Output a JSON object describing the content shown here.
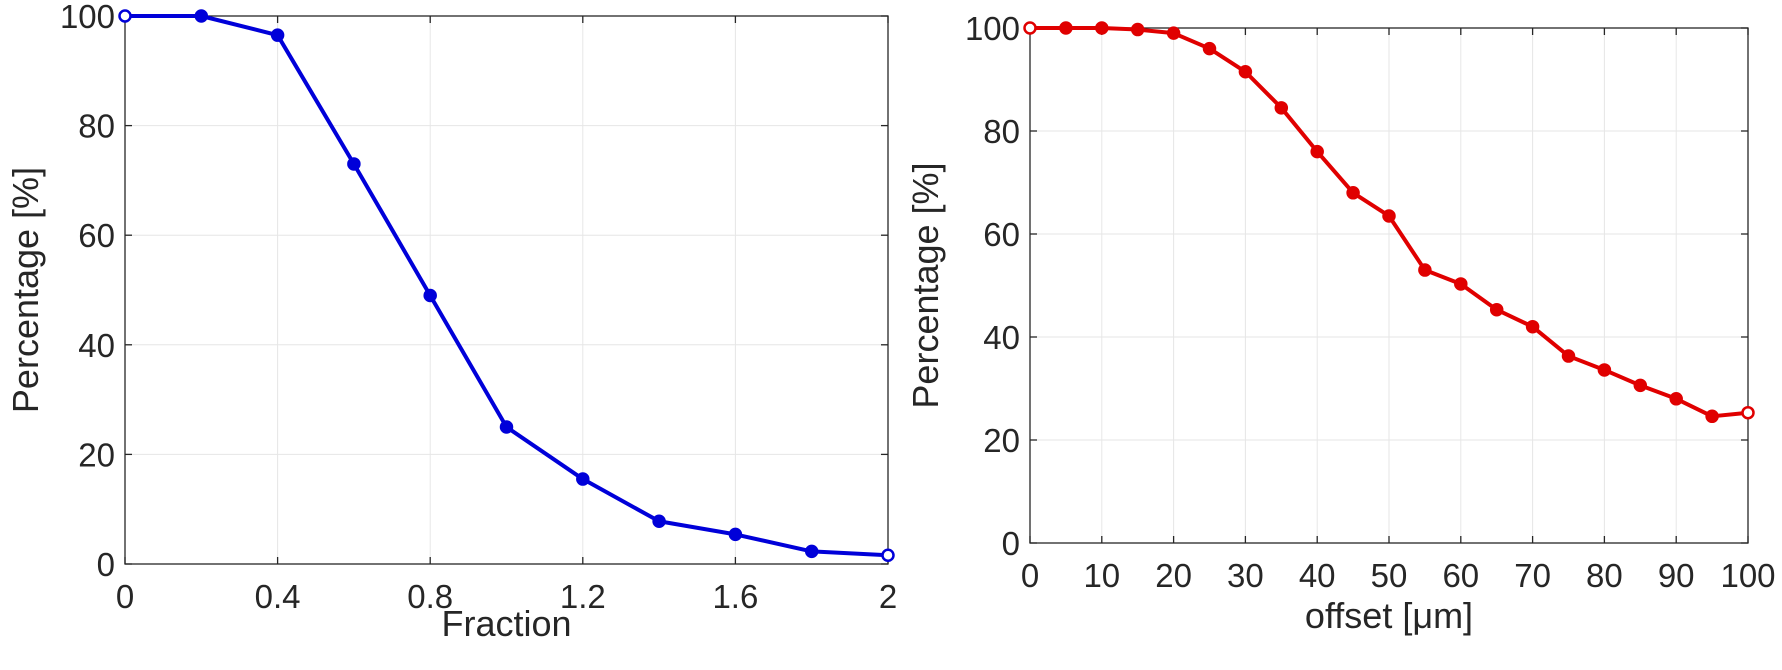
{
  "chart_data": [
    {
      "type": "line",
      "title": "",
      "xlabel": "Fraction",
      "ylabel": "Percentage [%]",
      "xlim": [
        0,
        2
      ],
      "ylim": [
        0,
        100
      ],
      "xticks": [
        0,
        0.4,
        0.8,
        1.2,
        1.6,
        2
      ],
      "xtick_labels": [
        "0",
        "0.4",
        "0.8",
        "1.2",
        "1.6",
        "2"
      ],
      "yticks": [
        0,
        20,
        40,
        60,
        80,
        100
      ],
      "ytick_labels": [
        "0",
        "20",
        "40",
        "60",
        "80",
        "100"
      ],
      "grid": true,
      "color": "#0000d9",
      "series": [
        {
          "x": [
            0,
            0.2,
            0.4,
            0.6,
            0.8,
            1.0,
            1.2,
            1.4,
            1.6,
            1.8,
            2.0
          ],
          "y": [
            100,
            100,
            96.5,
            73,
            49,
            25,
            15.5,
            7.8,
            5.4,
            2.3,
            1.6
          ]
        }
      ]
    },
    {
      "type": "line",
      "title": "",
      "xlabel": "offset [μm]",
      "ylabel": "Percentage [%]",
      "xlim": [
        0,
        100
      ],
      "ylim": [
        0,
        100
      ],
      "xticks": [
        0,
        10,
        20,
        30,
        40,
        50,
        60,
        70,
        80,
        90,
        100
      ],
      "xtick_labels": [
        "0",
        "10",
        "20",
        "30",
        "40",
        "50",
        "60",
        "70",
        "80",
        "90",
        "100"
      ],
      "yticks": [
        0,
        20,
        40,
        60,
        80,
        100
      ],
      "ytick_labels": [
        "0",
        "20",
        "40",
        "60",
        "80",
        "100"
      ],
      "grid": true,
      "color": "#e00000",
      "series": [
        {
          "x": [
            0,
            5,
            10,
            15,
            20,
            25,
            30,
            35,
            40,
            45,
            50,
            55,
            60,
            65,
            70,
            75,
            80,
            85,
            90,
            95,
            100
          ],
          "y": [
            100,
            100,
            100,
            99.7,
            99,
            96,
            91.5,
            84.5,
            76,
            68,
            63.5,
            53,
            50.3,
            45.3,
            42,
            36.3,
            33.6,
            30.6,
            28,
            24.6,
            25.3
          ]
        }
      ]
    }
  ]
}
